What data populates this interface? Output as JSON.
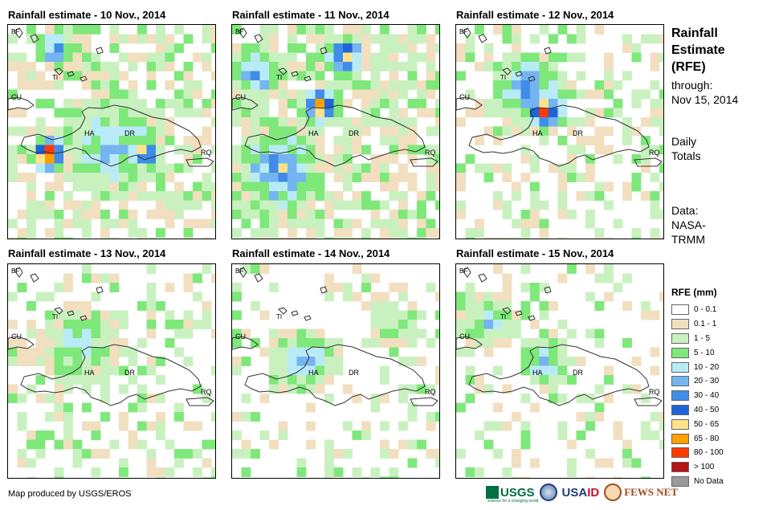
{
  "panels": [
    {
      "title": "Rainfall estimate - 10 Nov., 2014",
      "scenario": "s10"
    },
    {
      "title": "Rainfall estimate - 11 Nov., 2014",
      "scenario": "s11"
    },
    {
      "title": "Rainfall estimate - 12 Nov., 2014",
      "scenario": "s12"
    },
    {
      "title": "Rainfall estimate - 13 Nov., 2014",
      "scenario": "s13"
    },
    {
      "title": "Rainfall estimate - 14 Nov., 2014",
      "scenario": "s14"
    },
    {
      "title": "Rainfall estimate - 15 Nov., 2014",
      "scenario": "s15"
    }
  ],
  "map_labels": {
    "bf": "BF",
    "cu": "CU",
    "ti": "TI",
    "ha": "HA",
    "dr": "DR",
    "rq": "RQ"
  },
  "side": {
    "title_line1": "Rainfall",
    "title_line2": "Estimate",
    "title_line3": "(RFE)",
    "through": "through:",
    "date": "Nov 15, 2014",
    "daily1": "Daily",
    "daily2": "Totals",
    "data1": "Data:",
    "data2": "NASA-",
    "data3": "TRMM"
  },
  "legend": {
    "title": "RFE (mm)",
    "items": [
      {
        "label": "0 - 0.1",
        "color": "#ffffff"
      },
      {
        "label": "0.1 - 1",
        "color": "#f1dfc0"
      },
      {
        "label": "1 - 5",
        "color": "#c9f1c0"
      },
      {
        "label": "5 - 10",
        "color": "#7ee87a"
      },
      {
        "label": "10 - 20",
        "color": "#b9ebf7"
      },
      {
        "label": "20 - 30",
        "color": "#74b4f0"
      },
      {
        "label": "30 - 40",
        "color": "#3f8de8"
      },
      {
        "label": "40 - 50",
        "color": "#1f63d9"
      },
      {
        "label": "50 - 65",
        "color": "#ffe289"
      },
      {
        "label": "65 - 80",
        "color": "#ff9f00"
      },
      {
        "label": "80 - 100",
        "color": "#ff3a00"
      },
      {
        "label": "> 100",
        "color": "#b31414"
      },
      {
        "label": "No Data",
        "color": "#9a9a9a"
      }
    ]
  },
  "footer": {
    "credit": "Map produced by USGS/EROS",
    "usgs": "USGS",
    "usgs_tagline": "science for a changing world",
    "usaid_a": "USA",
    "usaid_b": "ID",
    "fews": "FEWS NET"
  }
}
